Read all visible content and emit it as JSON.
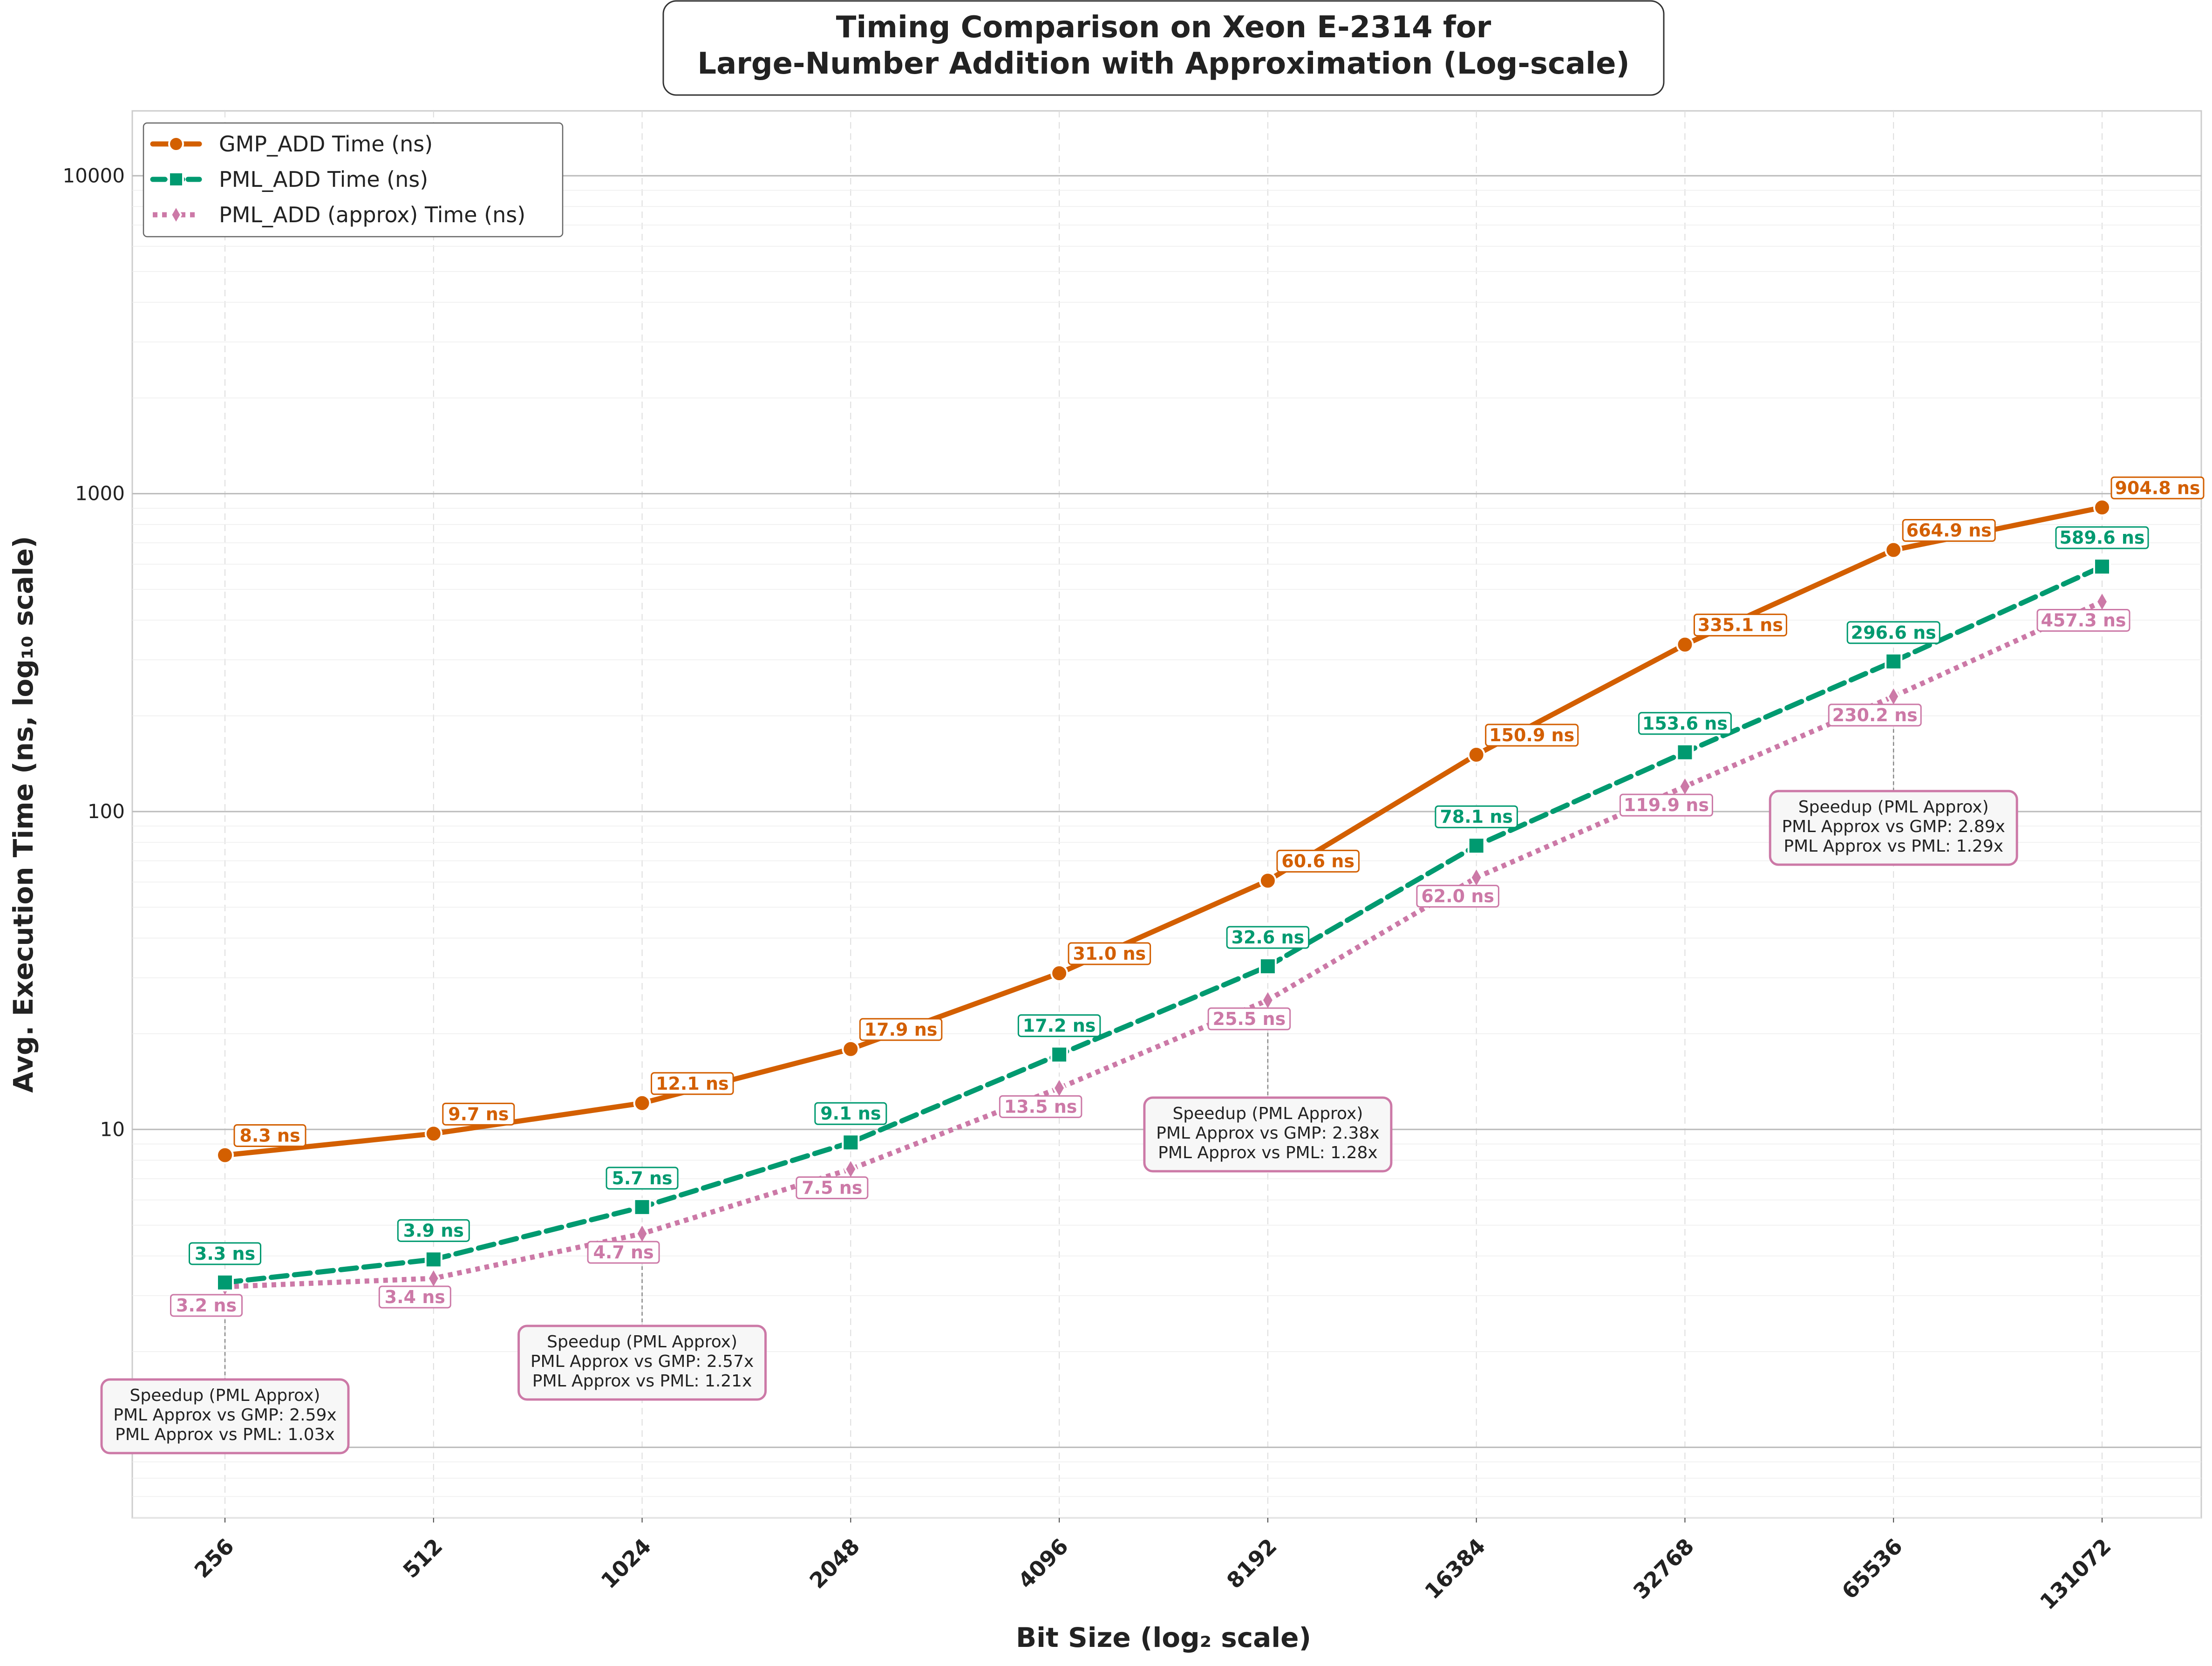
{
  "chart_data": {
    "type": "line",
    "title": [
      "Timing Comparison on Xeon E-2314 for",
      "Large-Number Addition with Approximation (Log-scale)"
    ],
    "xlabel": "Bit Size (log₂ scale)",
    "ylabel": "Avg. Execution Time (ns, log₁₀ scale)",
    "x_scale": "log2",
    "y_scale": "log10",
    "ylim": [
      0.6,
      16000
    ],
    "yticks": [
      "1",
      "10",
      "100",
      "1000",
      "10000"
    ],
    "grid": true,
    "legend_position": "top-left",
    "categories": [
      "256",
      "512",
      "1024",
      "2048",
      "4096",
      "8192",
      "16384",
      "32768",
      "65536",
      "131072"
    ],
    "series": [
      {
        "name": "GMP_ADD Time (ns)",
        "color": "#d35f00",
        "marker": "circle",
        "line": "solid",
        "values": [
          8.3,
          9.7,
          12.1,
          17.9,
          31.0,
          60.6,
          150.9,
          335.1,
          664.9,
          904.8
        ],
        "labels": [
          "8.3 ns",
          "9.7 ns",
          "12.1 ns",
          "17.9 ns",
          "31.0 ns",
          "60.6 ns",
          "150.9 ns",
          "335.1 ns",
          "664.9 ns",
          "904.8 ns"
        ]
      },
      {
        "name": "PML_ADD Time (ns)",
        "color": "#009a70",
        "marker": "square",
        "line": "dashed",
        "values": [
          3.3,
          3.9,
          5.7,
          9.1,
          17.2,
          32.6,
          78.1,
          153.6,
          296.6,
          589.6
        ],
        "labels": [
          "3.3 ns",
          "3.9 ns",
          "5.7 ns",
          "9.1 ns",
          "17.2 ns",
          "32.6 ns",
          "78.1 ns",
          "153.6 ns",
          "296.6 ns",
          "589.6 ns"
        ]
      },
      {
        "name": "PML_ADD (approx) Time (ns)",
        "color": "#cc79a7",
        "marker": "diamond",
        "line": "dotted",
        "values": [
          3.2,
          3.4,
          4.7,
          7.5,
          13.5,
          25.5,
          62.0,
          119.9,
          230.2,
          457.3
        ],
        "labels": [
          "3.2 ns",
          "3.4 ns",
          "4.7 ns",
          "7.5 ns",
          "13.5 ns",
          "25.5 ns",
          "62.0 ns",
          "119.9 ns",
          "230.2 ns",
          "457.3 ns"
        ]
      }
    ],
    "annotations": [
      {
        "x_index": 0,
        "lines": [
          "Speedup (PML Approx)",
          "PML Approx vs GMP: 2.59x",
          "PML Approx vs PML: 1.03x"
        ]
      },
      {
        "x_index": 2,
        "lines": [
          "Speedup (PML Approx)",
          "PML Approx vs GMP: 2.57x",
          "PML Approx vs PML: 1.21x"
        ]
      },
      {
        "x_index": 5,
        "lines": [
          "Speedup (PML Approx)",
          "PML Approx vs GMP: 2.38x",
          "PML Approx vs PML: 1.28x"
        ]
      },
      {
        "x_index": 8,
        "lines": [
          "Speedup (PML Approx)",
          "PML Approx vs GMP: 2.89x",
          "PML Approx vs PML: 1.29x"
        ]
      }
    ]
  }
}
